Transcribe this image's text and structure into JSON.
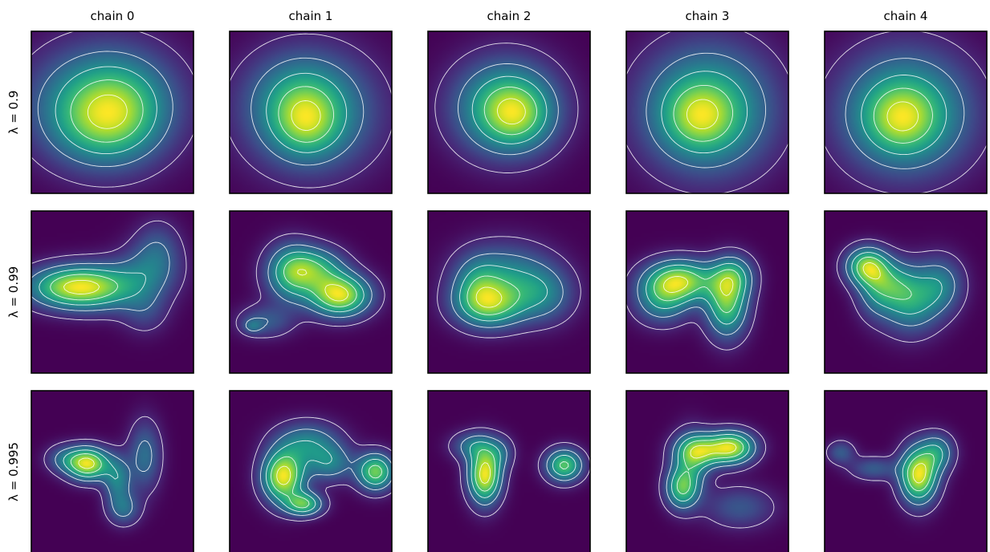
{
  "chart_data": {
    "type": "heatmap",
    "title": "",
    "columns": [
      "chain 0",
      "chain 1",
      "chain 2",
      "chain 3",
      "chain 4"
    ],
    "rows": [
      {
        "label": "λ = 0.9",
        "panels": [
          {
            "peaks": [
              [
                0.45,
                0.44,
                0.3,
                0.24,
                1.0
              ],
              [
                0.38,
                0.58,
                0.2,
                0.18,
                0.4
              ],
              [
                0.58,
                0.52,
                0.18,
                0.2,
                0.35
              ]
            ]
          },
          {
            "peaks": [
              [
                0.5,
                0.5,
                0.28,
                0.25,
                0.9
              ],
              [
                0.47,
                0.57,
                0.14,
                0.14,
                0.6
              ],
              [
                0.42,
                0.4,
                0.2,
                0.18,
                0.35
              ]
            ]
          },
          {
            "peaks": [
              [
                0.48,
                0.47,
                0.22,
                0.2,
                1.0
              ],
              [
                0.55,
                0.52,
                0.14,
                0.13,
                0.45
              ]
            ]
          },
          {
            "peaks": [
              [
                0.5,
                0.48,
                0.28,
                0.27,
                0.95
              ],
              [
                0.45,
                0.53,
                0.15,
                0.14,
                0.5
              ]
            ]
          },
          {
            "peaks": [
              [
                0.5,
                0.5,
                0.28,
                0.26,
                0.95
              ],
              [
                0.47,
                0.54,
                0.15,
                0.14,
                0.5
              ]
            ]
          }
        ]
      },
      {
        "label": "λ = 0.99",
        "panels": [
          {
            "peaks": [
              [
                0.22,
                0.47,
                0.18,
                0.09,
                1.0
              ],
              [
                0.45,
                0.47,
                0.17,
                0.1,
                0.65
              ],
              [
                0.72,
                0.38,
                0.14,
                0.12,
                0.4
              ],
              [
                0.78,
                0.22,
                0.1,
                0.12,
                0.3
              ],
              [
                0.7,
                0.62,
                0.1,
                0.1,
                0.25
              ]
            ]
          },
          {
            "peaks": [
              [
                0.68,
                0.52,
                0.13,
                0.09,
                1.0
              ],
              [
                0.38,
                0.38,
                0.11,
                0.12,
                0.7
              ],
              [
                0.55,
                0.35,
                0.12,
                0.09,
                0.5
              ],
              [
                0.22,
                0.68,
                0.12,
                0.07,
                0.3
              ],
              [
                0.14,
                0.71,
                0.04,
                0.03,
                0.25
              ]
            ]
          },
          {
            "peaks": [
              [
                0.38,
                0.58,
                0.15,
                0.1,
                1.0
              ],
              [
                0.48,
                0.4,
                0.2,
                0.14,
                0.65
              ],
              [
                0.72,
                0.52,
                0.13,
                0.12,
                0.5
              ],
              [
                0.3,
                0.45,
                0.1,
                0.12,
                0.4
              ]
            ]
          },
          {
            "peaks": [
              [
                0.33,
                0.43,
                0.15,
                0.09,
                0.9
              ],
              [
                0.62,
                0.58,
                0.09,
                0.14,
                0.75
              ],
              [
                0.22,
                0.56,
                0.12,
                0.1,
                0.45
              ],
              [
                0.66,
                0.4,
                0.09,
                0.09,
                0.5
              ]
            ]
          },
          {
            "peaks": [
              [
                0.26,
                0.34,
                0.09,
                0.08,
                1.0
              ],
              [
                0.53,
                0.55,
                0.13,
                0.14,
                0.7
              ],
              [
                0.72,
                0.45,
                0.1,
                0.12,
                0.45
              ],
              [
                0.4,
                0.45,
                0.1,
                0.1,
                0.45
              ],
              [
                0.3,
                0.5,
                0.08,
                0.12,
                0.3
              ]
            ]
          }
        ]
      },
      {
        "label": "λ = 0.995",
        "panels": [
          {
            "peaks": [
              [
                0.35,
                0.45,
                0.09,
                0.07,
                1.0
              ],
              [
                0.53,
                0.55,
                0.06,
                0.1,
                0.45
              ],
              [
                0.7,
                0.4,
                0.07,
                0.15,
                0.38
              ],
              [
                0.57,
                0.73,
                0.07,
                0.07,
                0.35
              ],
              [
                0.2,
                0.42,
                0.08,
                0.06,
                0.3
              ]
            ]
          },
          {
            "peaks": [
              [
                0.33,
                0.53,
                0.09,
                0.11,
                1.0
              ],
              [
                0.9,
                0.5,
                0.08,
                0.08,
                0.8
              ],
              [
                0.46,
                0.7,
                0.08,
                0.05,
                0.7
              ],
              [
                0.48,
                0.32,
                0.14,
                0.09,
                0.45
              ],
              [
                0.62,
                0.45,
                0.1,
                0.08,
                0.4
              ]
            ]
          },
          {
            "peaks": [
              [
                0.35,
                0.52,
                0.07,
                0.12,
                1.0
              ],
              [
                0.84,
                0.46,
                0.08,
                0.07,
                0.75
              ],
              [
                0.27,
                0.34,
                0.09,
                0.06,
                0.35
              ],
              [
                0.45,
                0.38,
                0.06,
                0.07,
                0.25
              ]
            ]
          },
          {
            "peaks": [
              [
                0.65,
                0.35,
                0.1,
                0.07,
                1.0
              ],
              [
                0.45,
                0.37,
                0.1,
                0.07,
                0.7
              ],
              [
                0.34,
                0.6,
                0.07,
                0.09,
                0.7
              ],
              [
                0.7,
                0.72,
                0.15,
                0.09,
                0.3
              ],
              [
                0.4,
                0.45,
                0.08,
                0.14,
                0.4
              ]
            ]
          },
          {
            "peaks": [
              [
                0.58,
                0.52,
                0.08,
                0.12,
                1.0
              ],
              [
                0.3,
                0.48,
                0.1,
                0.05,
                0.3
              ],
              [
                0.1,
                0.38,
                0.06,
                0.05,
                0.3
              ],
              [
                0.7,
                0.38,
                0.07,
                0.08,
                0.45
              ]
            ]
          }
        ]
      }
    ],
    "colormap": "viridis",
    "contour_color": "#ffffff",
    "grid": false
  }
}
